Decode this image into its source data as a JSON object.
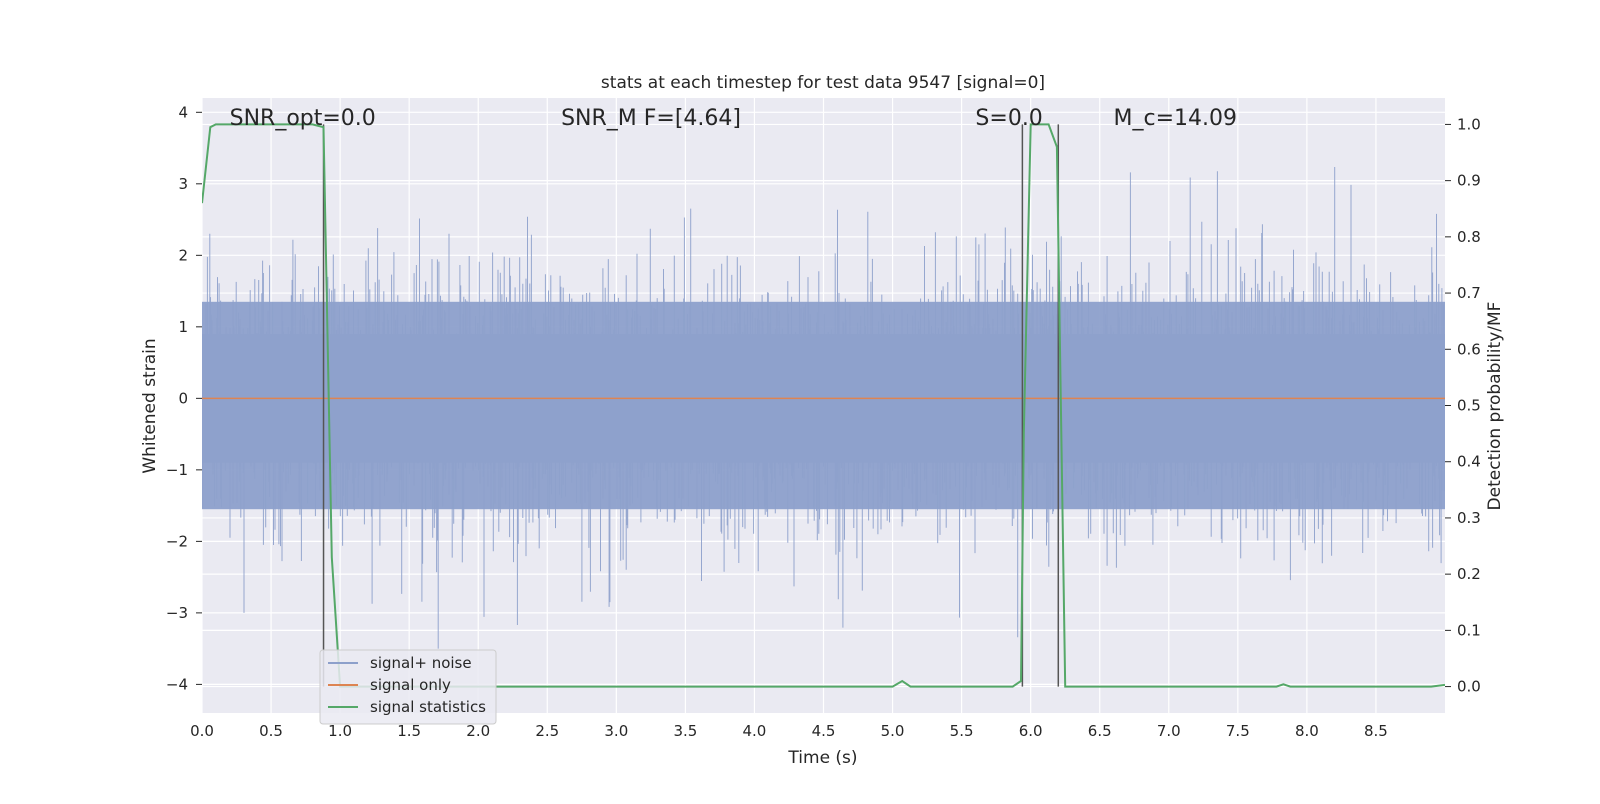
{
  "chart_data": {
    "type": "line",
    "title": "stats at each timestep for test data 9547 [signal=0]",
    "xlabel": "Time (s)",
    "ylabel": "Whitened strain",
    "y2label": "Detection probability/MF",
    "xlim": [
      0.0,
      9.0
    ],
    "ylim": [
      -4.4,
      4.2
    ],
    "y2lim": [
      -0.047,
      1.047
    ],
    "xticks": [
      "0.0",
      "0.5",
      "1.0",
      "1.5",
      "2.0",
      "2.5",
      "3.0",
      "3.5",
      "4.0",
      "4.5",
      "5.0",
      "5.5",
      "6.0",
      "6.5",
      "7.0",
      "7.5",
      "8.0",
      "8.5"
    ],
    "yticks": [
      "4",
      "3",
      "2",
      "1",
      "0",
      "−1",
      "−2",
      "−3",
      "−4"
    ],
    "y2ticks": [
      "1.0",
      "0.9",
      "0.8",
      "0.7",
      "0.6",
      "0.5",
      "0.4",
      "0.3",
      "0.2",
      "0.1",
      "0.0"
    ],
    "grid": true,
    "legend_position": "lower-left",
    "annotations": [
      {
        "id": "snr-opt",
        "text": "SNR_opt=0.0",
        "x": 0.2
      },
      {
        "id": "snr-mf",
        "text": "SNR_M F=[4.64]",
        "x": 2.6
      },
      {
        "id": "s-stat",
        "text": "S=0.0",
        "x": 5.6
      },
      {
        "id": "mc",
        "text": "M_c=14.09",
        "x": 6.6
      }
    ],
    "vlines": [
      0.88,
      5.94,
      6.2
    ],
    "series": [
      {
        "name": "signal+ noise",
        "color": "#8da0cb",
        "note": "dense whitened noise, approximately unit variance",
        "amplitude_range": [
          -3.8,
          3.5
        ]
      },
      {
        "name": "signal only",
        "color": "#dd8452",
        "x": [
          0.0,
          9.0
        ],
        "y": [
          0.0,
          0.0
        ]
      },
      {
        "name": "signal statistics",
        "color": "#55a868",
        "axis": "right",
        "x": [
          0.0,
          0.06,
          0.1,
          0.2,
          0.4,
          0.6,
          0.8,
          0.88,
          0.94,
          1.0,
          1.06,
          1.2,
          2.0,
          3.0,
          4.0,
          4.5,
          5.0,
          5.07,
          5.13,
          5.5,
          5.87,
          5.93,
          5.95,
          6.0,
          6.05,
          6.13,
          6.19,
          6.25,
          6.5,
          7.0,
          7.5,
          7.78,
          7.83,
          7.88,
          8.0,
          8.5,
          8.9,
          9.0
        ],
        "y": [
          0.86,
          0.995,
          1.0,
          1.0,
          1.0,
          1.0,
          1.0,
          0.995,
          0.23,
          0.0,
          0.0,
          0.0,
          0.0,
          0.0,
          0.0,
          0.0,
          0.0,
          0.01,
          0.0,
          0.0,
          0.0,
          0.01,
          0.45,
          1.0,
          1.0,
          1.0,
          0.96,
          0.0,
          0.0,
          0.0,
          0.0,
          0.0,
          0.004,
          0.0,
          0.0,
          0.0,
          0.0,
          0.003
        ]
      }
    ]
  }
}
